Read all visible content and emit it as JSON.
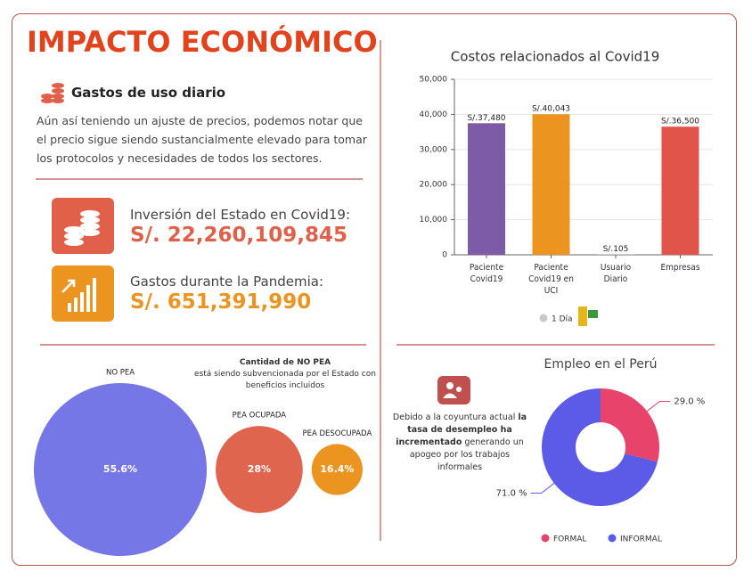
{
  "header": {
    "title": "IMPACTO ECONÓMICO"
  },
  "summary": {
    "heading": "Gastos de uso diario",
    "text": "Aún así teniendo un ajuste de precios, podemos notar que el precio sigue siendo sustancialmente elevado para tomar los protocolos y necesidades de todos los sectores."
  },
  "stats": [
    {
      "label": "Inversión del Estado en Covid19:",
      "value": "S/. 22,260,109,845",
      "color": "#e0604a"
    },
    {
      "label": "Gastos durante la Pandemia:",
      "value": "S/. 651,391,990",
      "color": "#eb9520"
    }
  ],
  "chart_data": [
    {
      "type": "bar",
      "title": "Costos relacionados al Covid19",
      "categories": [
        "Paciente Covid19",
        "Paciente Covid19 en UCI",
        "Usuario Diario",
        "Empresas"
      ],
      "values": [
        37480,
        40043,
        105,
        36500
      ],
      "value_labels": [
        "S/.37,480",
        "S/.40,043",
        "S/.105",
        "S/.36,500"
      ],
      "colors": [
        "#7d5ba6",
        "#eb9520",
        "#a0a0a0",
        "#e0544a"
      ],
      "ylim": [
        0,
        50000
      ],
      "yticks": [
        0,
        {
          "value": 10000,
          "label": "10,000"
        },
        {
          "value": 20000,
          "label": "20,000"
        },
        {
          "value": 30000,
          "label": "30,000"
        },
        {
          "value": 40000,
          "label": "40,000"
        },
        {
          "value": 50000,
          "label": "50,000"
        }
      ],
      "grid": true,
      "legend": "1 Día"
    },
    {
      "type": "bubble",
      "categories": [
        "NO PEA",
        "PEA OCUPADA",
        "PEA DESOCUPADA"
      ],
      "values": [
        55.6,
        28,
        16.4
      ],
      "value_labels": [
        "55.6%",
        "28%",
        "16.4%"
      ],
      "colors": [
        "#7677e6",
        "#e0654e",
        "#eb9520"
      ],
      "note_title": "Cantidad de NO PEA",
      "note": "está siendo subvencionada por el Estado con beneficios incluidos"
    },
    {
      "type": "donut",
      "title": "Empleo en el Perú",
      "categories": [
        "FORMAL",
        "INFORMAL"
      ],
      "values": [
        29.0,
        71.0
      ],
      "value_labels": [
        "29.0 %",
        "71.0 %"
      ],
      "colors": [
        "#e8436a",
        "#5b5be8"
      ],
      "note_parts": [
        "Debido a la coyuntura actual",
        "la tasa de desempleo ha incrementado",
        "generando un apogeo por los trabajos informales"
      ]
    }
  ]
}
